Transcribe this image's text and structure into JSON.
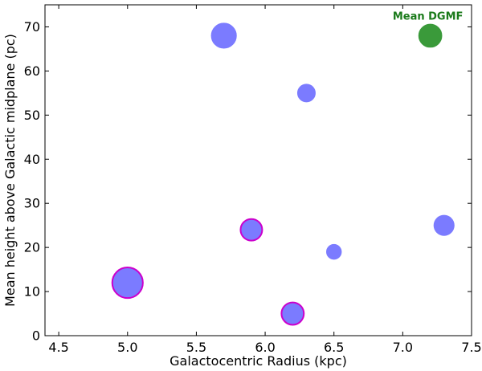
{
  "chart_data": {
    "type": "scatter",
    "xlabel": "Galactocentric Radius (kpc)",
    "ylabel": "Mean height above Galactic midplane (pc)",
    "xlim": [
      4.4,
      7.5
    ],
    "ylim": [
      0,
      75
    ],
    "xticks": [
      4.5,
      5.0,
      5.5,
      6.0,
      6.5,
      7.0,
      7.5
    ],
    "xtick_labels": [
      "4.5",
      "5.0",
      "5.5",
      "6.0",
      "6.5",
      "7.0",
      "7.5"
    ],
    "yticks": [
      0,
      10,
      20,
      30,
      40,
      50,
      60,
      70
    ],
    "ytick_labels": [
      "0",
      "10",
      "20",
      "30",
      "40",
      "50",
      "60",
      "70"
    ],
    "grid": false,
    "colors": {
      "point_fill": "#7b7bff",
      "point_highlight_edge": "#cc00cc",
      "mean_fill": "#3a9a3a",
      "annotation": "#1a7a1a"
    },
    "points": [
      {
        "x": 5.0,
        "y": 12,
        "size": 3,
        "highlight": true
      },
      {
        "x": 5.7,
        "y": 68,
        "size": 2,
        "highlight": false
      },
      {
        "x": 5.9,
        "y": 24,
        "size": 1.5,
        "highlight": true
      },
      {
        "x": 6.2,
        "y": 5,
        "size": 1.6,
        "highlight": true
      },
      {
        "x": 6.3,
        "y": 55,
        "size": 1,
        "highlight": false
      },
      {
        "x": 6.5,
        "y": 19,
        "size": 0.7,
        "highlight": false
      },
      {
        "x": 7.3,
        "y": 25,
        "size": 1.3,
        "highlight": false
      }
    ],
    "mean_point": {
      "x": 7.2,
      "y": 68,
      "size": 1.7
    },
    "annotation": {
      "text": "Mean DGMF",
      "x": 7.2,
      "y": 72.5
    }
  }
}
